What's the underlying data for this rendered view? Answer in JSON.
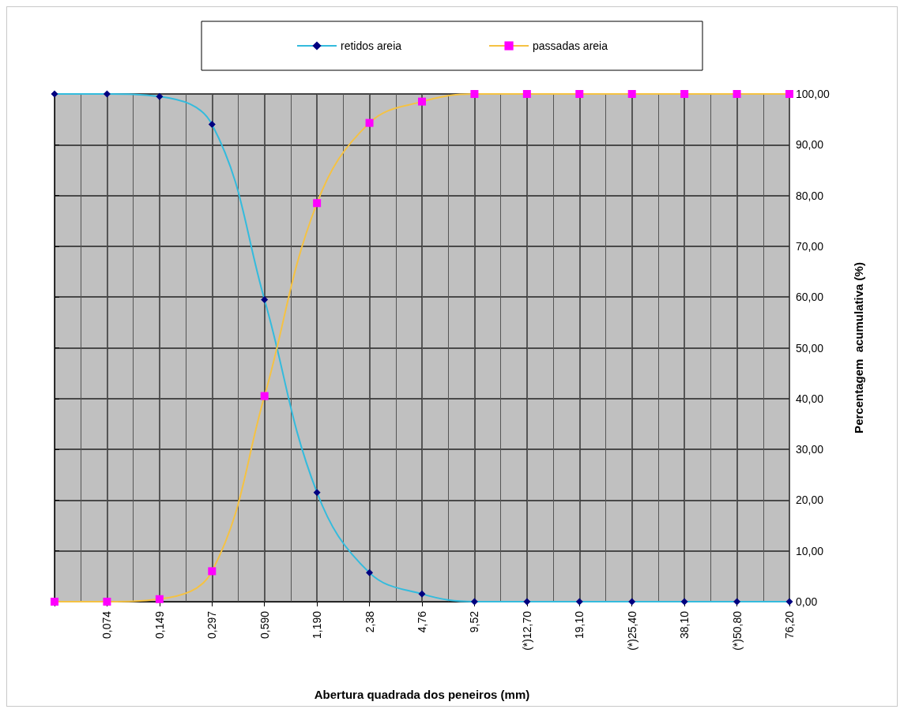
{
  "chart_data": {
    "type": "line",
    "categories": [
      null,
      "0,074",
      "0,149",
      "0,297",
      "0,590",
      "1,190",
      "2,38",
      "4,76",
      "9,52",
      "(*)12,70",
      "19,10",
      "(*)25,40",
      "38,10",
      "(*)50,80",
      "76,20"
    ],
    "series": [
      {
        "name": "retidos areia",
        "color": "#33bbdd",
        "marker": "diamond",
        "colors": [
          "#000080",
          "#000080",
          "#000080",
          "#000080",
          "#000080",
          "#000080",
          "#000080",
          "#000080",
          "#000080",
          "#000080",
          "#000080",
          "#000080",
          "#000080",
          "#000080",
          "#000080"
        ],
        "values": [
          100,
          100,
          99.5,
          94,
          59.5,
          21.5,
          5.7,
          1.5,
          0,
          0,
          0,
          0,
          0,
          0,
          0
        ]
      },
      {
        "name": "passadas areia",
        "color": "#f5c242",
        "marker": "square",
        "colors": [
          "#ff00ff",
          "#ff00ff",
          "#ff00ff",
          "#ff00ff",
          "#ff00ff",
          "#ff00ff",
          "#ff00ff",
          "#ff00ff",
          "#ff00ff",
          "#ff00ff",
          "#ff00ff",
          "#ff00ff",
          "#ff00ff",
          "#ff00ff",
          "#ff00ff"
        ],
        "values": [
          0,
          0,
          0.5,
          6,
          40.5,
          78.5,
          94.3,
          98.5,
          100,
          100,
          100,
          100,
          100,
          100,
          100
        ]
      }
    ],
    "xlabel": "Abertura quadrada dos peneiros (mm)",
    "ylabel": "Percentagem  acumulativa (%)",
    "ylim": [
      0,
      100
    ],
    "yticks": [
      {
        "value": 0,
        "label": "0,00"
      },
      {
        "value": 10,
        "label": "10,00"
      },
      {
        "value": 20,
        "label": "20,00"
      },
      {
        "value": 30,
        "label": "30,00"
      },
      {
        "value": 40,
        "label": "40,00"
      },
      {
        "value": 50,
        "label": "50,00"
      },
      {
        "value": 60,
        "label": "60,00"
      },
      {
        "value": 70,
        "label": "70,00"
      },
      {
        "value": 80,
        "label": "80,00"
      },
      {
        "value": 90,
        "label": "90,00"
      },
      {
        "value": 100,
        "label": "100,00"
      }
    ],
    "grid": true,
    "legend": "top",
    "line_style": "solid"
  }
}
